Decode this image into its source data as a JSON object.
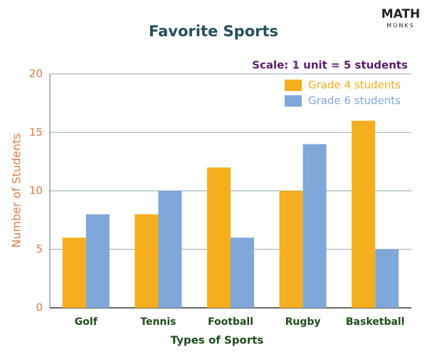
{
  "logo": {
    "top": "MATH",
    "bottom": "MONKS"
  },
  "chart_data": {
    "type": "bar",
    "title": "Favorite Sports",
    "annotation": "Scale: 1 unit = 5 students",
    "x_label": "Types of Sports",
    "y_label": "Number of Students",
    "categories": [
      "Golf",
      "Tennis",
      "Football",
      "Rugby",
      "Basketball"
    ],
    "series": [
      {
        "name": "Grade 4 students",
        "color": "#f4ae1e",
        "values": [
          6,
          8,
          12,
          10,
          16
        ]
      },
      {
        "name": "Grade 6 students",
        "color": "#7fa7d9",
        "values": [
          8,
          10,
          6,
          14,
          5
        ]
      }
    ],
    "ylim": [
      0,
      20
    ],
    "yticks": [
      0,
      5,
      10,
      15,
      20
    ],
    "grid": true,
    "legend": "top-right"
  }
}
